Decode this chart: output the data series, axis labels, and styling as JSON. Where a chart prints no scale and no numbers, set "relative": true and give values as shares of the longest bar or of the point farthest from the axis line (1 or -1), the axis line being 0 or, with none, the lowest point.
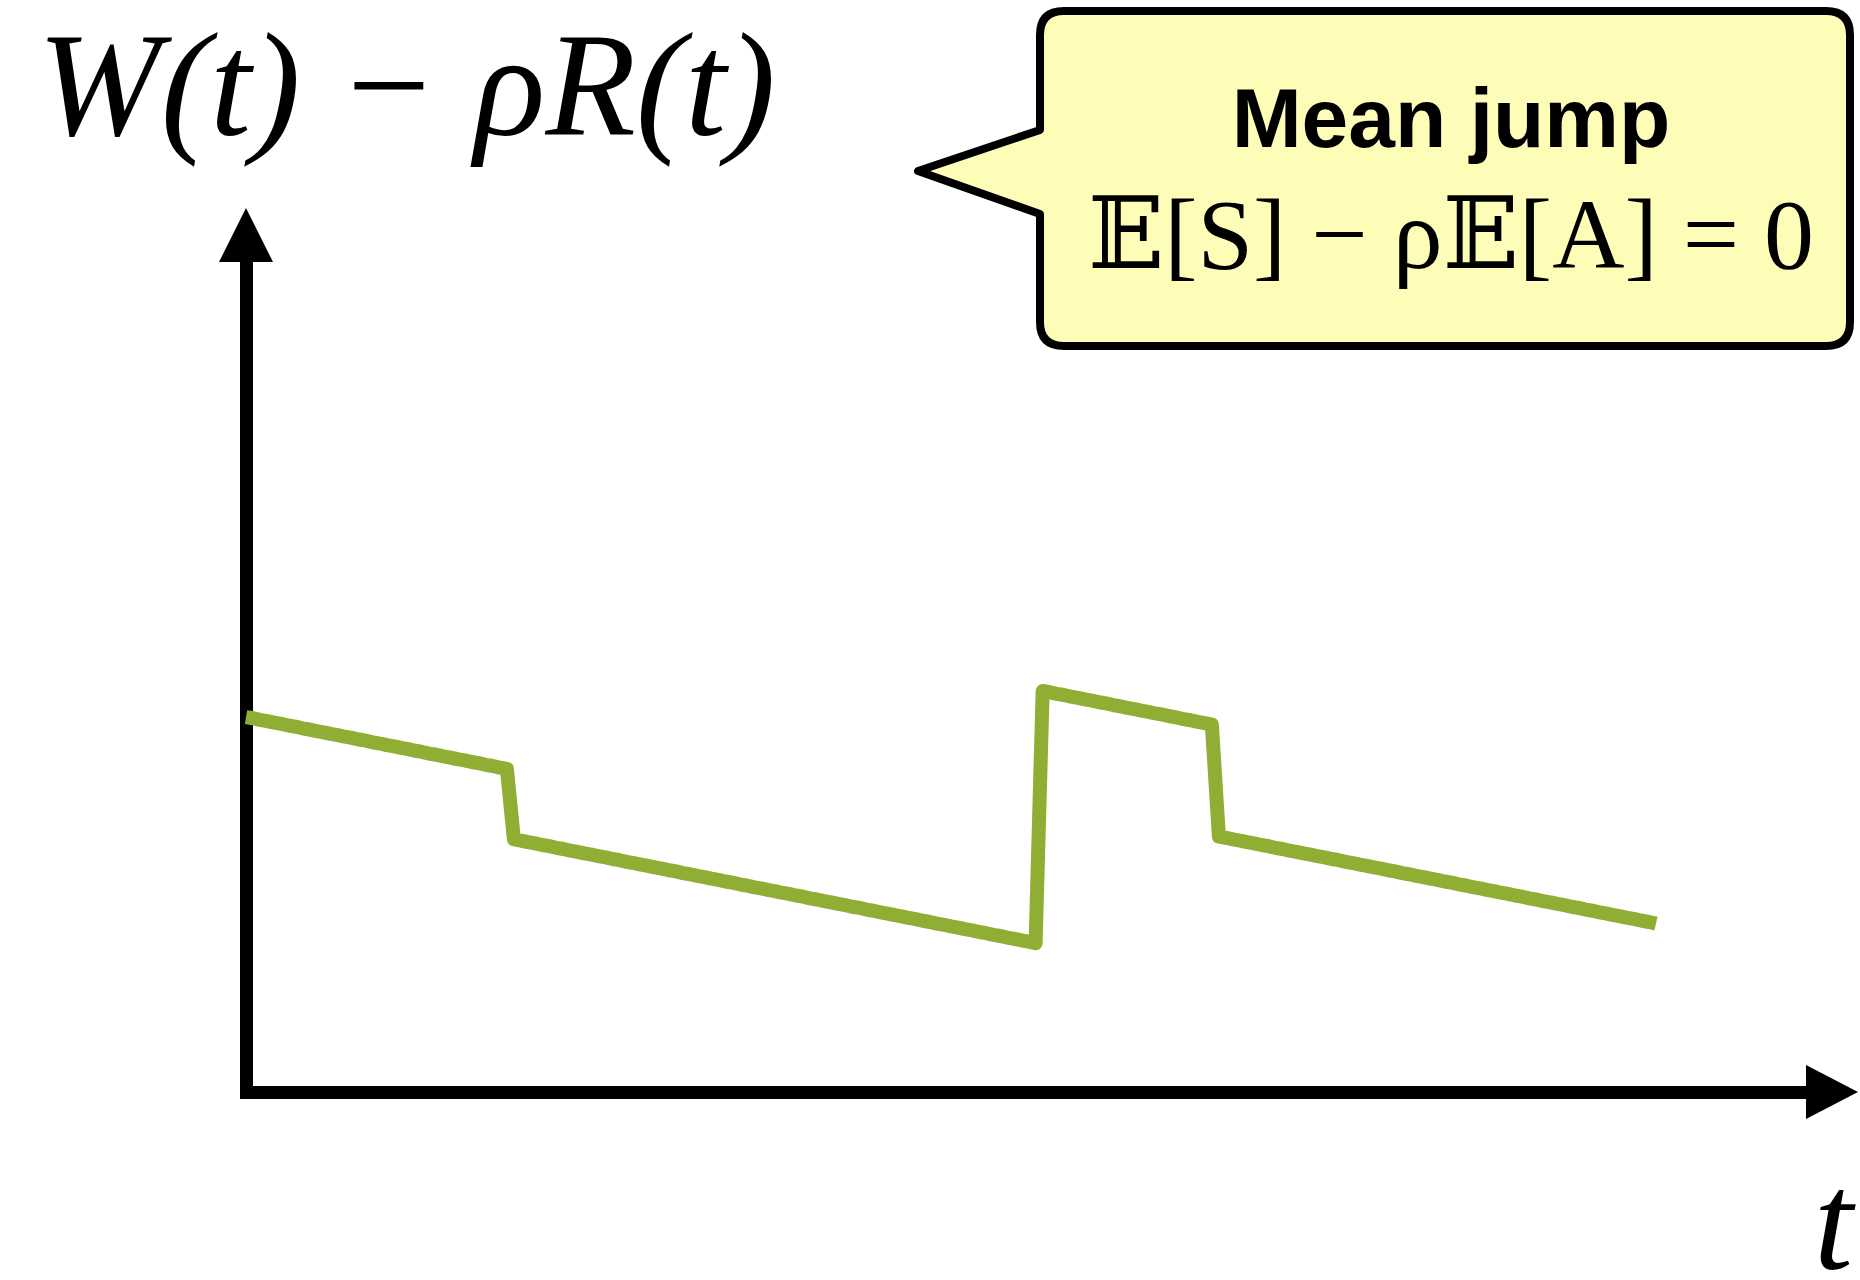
{
  "chart_data": {
    "type": "line",
    "relative": true,
    "ylabel": "W(t) − ρR(t)",
    "xlabel": "t",
    "categories": [
      null,
      null,
      null,
      null,
      null,
      null,
      null,
      null,
      null,
      null,
      null,
      null,
      null,
      null,
      null,
      null,
      null,
      null,
      null,
      null,
      null,
      null,
      null,
      null,
      null,
      null,
      null,
      null,
      null,
      null,
      null,
      null,
      null,
      null,
      null,
      null,
      null,
      null,
      null,
      null,
      null,
      null,
      null,
      null,
      null,
      null,
      null,
      null,
      null,
      null,
      null,
      null,
      null,
      null,
      null,
      null,
      null,
      null,
      null,
      null,
      null,
      null,
      null,
      null,
      null,
      null,
      null,
      null,
      null,
      null,
      null,
      null,
      null,
      null,
      null,
      null,
      null,
      null,
      null,
      null,
      null,
      null,
      null,
      null,
      null,
      null,
      null,
      null,
      null,
      null,
      null,
      null,
      null,
      null,
      null,
      null,
      null,
      null,
      null,
      null,
      null,
      null,
      null,
      null,
      null,
      null,
      null,
      null,
      null,
      null,
      null,
      null,
      null,
      null,
      null,
      null,
      null,
      null,
      null,
      null,
      null,
      null,
      null,
      null,
      null,
      null,
      null,
      null,
      null,
      null,
      null,
      null,
      null,
      null,
      null,
      null,
      null,
      null,
      null,
      null,
      null,
      null,
      null,
      null,
      null,
      null,
      null,
      null,
      null,
      null,
      null,
      null,
      null,
      null,
      null,
      null,
      null,
      null,
      null,
      null,
      null,
      null,
      null,
      null,
      null,
      null,
      null,
      null,
      null,
      null,
      null,
      null,
      null,
      null,
      null,
      null,
      null,
      null,
      null,
      null,
      null,
      null,
      null,
      null,
      null,
      null,
      null,
      null,
      null,
      null,
      null,
      null,
      null,
      null,
      null,
      null,
      null,
      null,
      null,
      null,
      null
    ],
    "series": [
      {
        "color": "#8fae33",
        "values": [
          0.935,
          0.932,
          0.928,
          0.925,
          0.921,
          0.918,
          0.914,
          0.911,
          0.907,
          0.904,
          0.9,
          0.897,
          0.893,
          0.89,
          0.886,
          0.883,
          0.879,
          0.876,
          0.872,
          0.869,
          0.865,
          0.862,
          0.858,
          0.855,
          0.851,
          0.848,
          0.844,
          0.841,
          0.837,
          0.834,
          0.83,
          0.827,
          0.823,
          0.82,
          0.816,
          0.813,
          0.809,
          0.806,
          0.63,
          0.627,
          0.623,
          0.62,
          0.616,
          0.613,
          0.609,
          0.606,
          0.602,
          0.599,
          0.595,
          0.592,
          0.588,
          0.585,
          0.581,
          0.578,
          0.574,
          0.571,
          0.567,
          0.564,
          0.56,
          0.557,
          0.553,
          0.55,
          0.546,
          0.543,
          0.539,
          0.536,
          0.532,
          0.529,
          0.525,
          0.522,
          0.518,
          0.515,
          0.511,
          0.508,
          0.504,
          0.501,
          0.497,
          0.494,
          0.49,
          0.487,
          0.483,
          0.48,
          0.476,
          0.473,
          0.469,
          0.466,
          0.462,
          0.459,
          0.455,
          0.452,
          0.448,
          0.445,
          0.441,
          0.438,
          0.434,
          0.431,
          0.427,
          0.424,
          0.42,
          0.417,
          0.413,
          0.41,
          0.406,
          0.403,
          0.399,
          0.396,
          0.392,
          0.389,
          0.385,
          0.382,
          0.378,
          0.375,
          0.371,
          1,
          0.997,
          0.993,
          0.99,
          0.986,
          0.983,
          0.979,
          0.976,
          0.972,
          0.969,
          0.965,
          0.962,
          0.958,
          0.955,
          0.951,
          0.948,
          0.944,
          0.941,
          0.937,
          0.934,
          0.93,
          0.927,
          0.923,
          0.92,
          0.916,
          0.637,
          0.634,
          0.63,
          0.627,
          0.623,
          0.62,
          0.616,
          0.613,
          0.609,
          0.606,
          0.602,
          0.599,
          0.595,
          0.592,
          0.588,
          0.585,
          0.581,
          0.578,
          0.574,
          0.571,
          0.567,
          0.564,
          0.56,
          0.557,
          0.553,
          0.55,
          0.546,
          0.543,
          0.539,
          0.536,
          0.532,
          0.529,
          0.525,
          0.522,
          0.518,
          0.515,
          0.511,
          0.508,
          0.504,
          0.501,
          0.497,
          0.494,
          0.49,
          0.487,
          0.483,
          0.48,
          0.476,
          0.473,
          0.469,
          0.466,
          0.462,
          0.459,
          0.455,
          0.452,
          0.448,
          0.445,
          0.441,
          0.438,
          0.434,
          0.431,
          0.427,
          0.424,
          0.42
        ]
      }
    ],
    "annotations": [
      "Mean jump",
      "𝔼[S] − ρ𝔼[A] = 0"
    ]
  }
}
